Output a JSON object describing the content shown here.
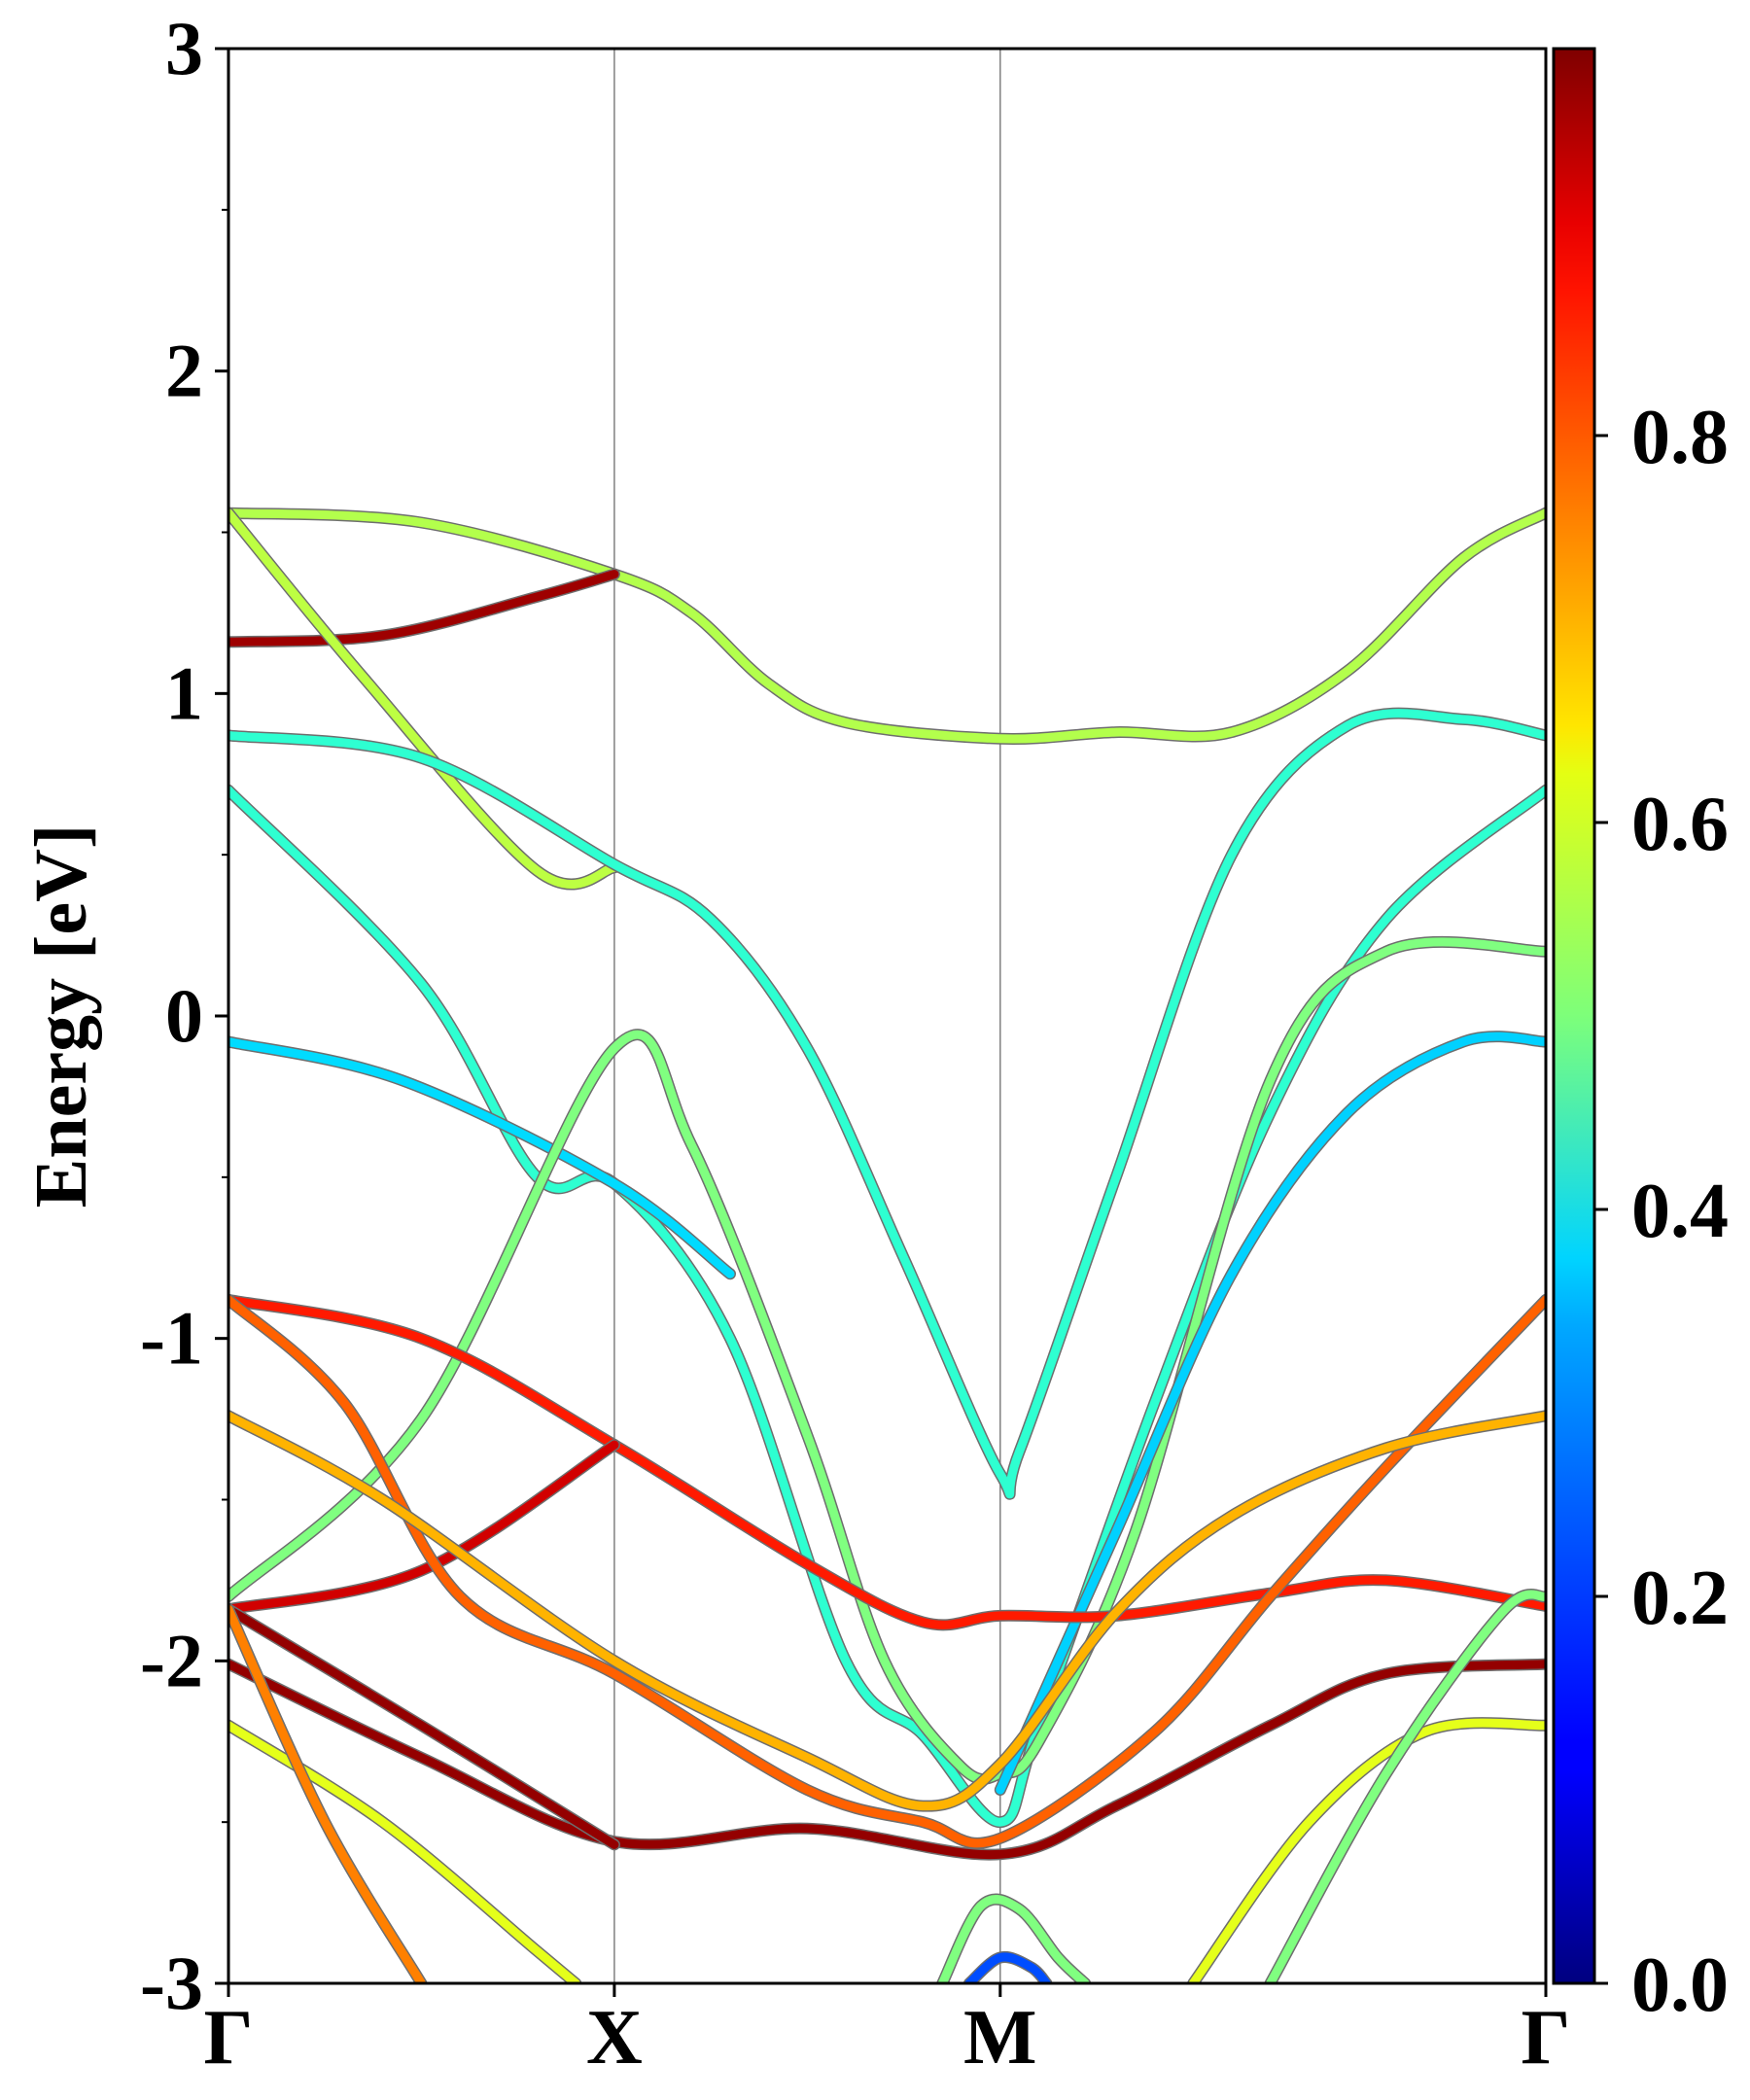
{
  "chart_data": {
    "type": "line",
    "xlabel": "",
    "ylabel": "Energy [eV]",
    "ylim": [
      -3,
      3
    ],
    "yticks": [
      -3,
      -2,
      -1,
      0,
      1,
      2,
      3
    ],
    "ytick_labels": [
      "-3",
      "-2",
      "-1",
      "0",
      "1",
      "2",
      "3"
    ],
    "xlim": [
      0,
      3.414
    ],
    "kpoints": [
      {
        "label": "Γ",
        "x": 0
      },
      {
        "label": "X",
        "x": 1
      },
      {
        "label": "M",
        "x": 2
      },
      {
        "label": "Γ",
        "x": 3.414
      }
    ],
    "colorbar": {
      "colormap": "jet",
      "range": [
        0.0,
        1.0
      ],
      "ticks": [
        0.0,
        0.2,
        0.4,
        0.6,
        0.8
      ],
      "tick_labels": [
        "0.0",
        "0.2",
        "0.4",
        "0.6",
        "0.8"
      ]
    },
    "series": [
      {
        "weight": 0.55,
        "points": [
          [
            0,
            1.56
          ],
          [
            0.5,
            1.53
          ],
          [
            1,
            1.37
          ],
          [
            1.2,
            1.25
          ],
          [
            1.4,
            1.03
          ],
          [
            1.6,
            0.91
          ],
          [
            2,
            0.86
          ],
          [
            2.3,
            0.88
          ],
          [
            2.6,
            0.88
          ],
          [
            2.9,
            1.07
          ],
          [
            3.2,
            1.42
          ],
          [
            3.414,
            1.56
          ]
        ]
      },
      {
        "weight": 0.97,
        "points": [
          [
            0,
            1.16
          ],
          [
            0.4,
            1.18
          ],
          [
            0.8,
            1.3
          ],
          [
            1,
            1.37
          ]
        ]
      },
      {
        "weight": 0.56,
        "points": [
          [
            0,
            1.56
          ],
          [
            0.35,
            1.05
          ],
          [
            0.8,
            0.45
          ],
          [
            1,
            0.46
          ]
        ]
      },
      {
        "weight": 0.42,
        "points": [
          [
            0,
            0.87
          ],
          [
            0.5,
            0.8
          ],
          [
            1,
            0.47
          ],
          [
            1.25,
            0.3
          ],
          [
            1.5,
            -0.1
          ],
          [
            1.75,
            -0.75
          ],
          [
            2,
            -1.42
          ],
          [
            2.05,
            -1.35
          ],
          [
            2.3,
            -0.5
          ],
          [
            2.6,
            0.5
          ],
          [
            2.9,
            0.9
          ],
          [
            3.2,
            0.92
          ],
          [
            3.414,
            0.87
          ]
        ]
      },
      {
        "weight": 0.42,
        "points": [
          [
            0,
            0.7
          ],
          [
            0.5,
            0.1
          ],
          [
            0.8,
            -0.5
          ],
          [
            1,
            -0.52
          ],
          [
            1.3,
            -1.0
          ],
          [
            1.6,
            -2.0
          ],
          [
            1.8,
            -2.23
          ],
          [
            2,
            -2.5
          ],
          [
            2.1,
            -2.2
          ],
          [
            2.4,
            -1.2
          ],
          [
            2.7,
            -0.3
          ],
          [
            3.0,
            0.3
          ],
          [
            3.414,
            0.7
          ]
        ]
      },
      {
        "weight": 0.34,
        "points": [
          [
            0,
            -0.08
          ],
          [
            0.45,
            -0.2
          ],
          [
            1,
            -0.52
          ],
          [
            1.3,
            -0.8
          ]
        ]
      },
      {
        "weight": 0.5,
        "points": [
          [
            0,
            -1.8
          ],
          [
            0.5,
            -1.25
          ],
          [
            1,
            -0.1
          ],
          [
            1.2,
            -0.4
          ],
          [
            1.5,
            -1.3
          ],
          [
            1.7,
            -2.0
          ],
          [
            1.9,
            -2.33
          ],
          [
            2,
            -2.35
          ],
          [
            2.1,
            -2.25
          ],
          [
            2.35,
            -1.6
          ],
          [
            2.7,
            -0.2
          ],
          [
            3.0,
            0.2
          ],
          [
            3.414,
            0.2
          ]
        ]
      },
      {
        "weight": 0.33,
        "points": [
          [
            2,
            -2.4
          ],
          [
            2.3,
            -1.6
          ],
          [
            2.6,
            -0.8
          ],
          [
            2.9,
            -0.3
          ],
          [
            3.2,
            -0.08
          ],
          [
            3.414,
            -0.08
          ]
        ]
      },
      {
        "weight": 0.85,
        "points": [
          [
            0,
            -0.88
          ],
          [
            0.5,
            -1.0
          ],
          [
            1,
            -1.33
          ],
          [
            1.5,
            -1.7
          ],
          [
            1.8,
            -1.88
          ],
          [
            2,
            -1.86
          ],
          [
            2.3,
            -1.86
          ],
          [
            2.7,
            -1.79
          ],
          [
            3.0,
            -1.75
          ],
          [
            3.414,
            -1.83
          ]
        ]
      },
      {
        "weight": 0.92,
        "points": [
          [
            0,
            -1.84
          ],
          [
            0.5,
            -1.72
          ],
          [
            1,
            -1.33
          ]
        ]
      },
      {
        "weight": 0.78,
        "points": [
          [
            0,
            -0.88
          ],
          [
            0.3,
            -1.2
          ],
          [
            0.6,
            -1.8
          ],
          [
            1,
            -2.04
          ],
          [
            1.5,
            -2.4
          ],
          [
            1.8,
            -2.5
          ],
          [
            2,
            -2.55
          ],
          [
            2.4,
            -2.22
          ],
          [
            2.7,
            -1.8
          ],
          [
            3.0,
            -1.4
          ],
          [
            3.414,
            -0.88
          ]
        ]
      },
      {
        "weight": 0.7,
        "points": [
          [
            0,
            -1.24
          ],
          [
            0.4,
            -1.5
          ],
          [
            1,
            -2.0
          ],
          [
            1.5,
            -2.3
          ],
          [
            1.8,
            -2.45
          ],
          [
            2,
            -2.32
          ],
          [
            2.3,
            -1.85
          ],
          [
            2.6,
            -1.55
          ],
          [
            3.0,
            -1.34
          ],
          [
            3.414,
            -1.24
          ]
        ]
      },
      {
        "weight": 0.98,
        "points": [
          [
            0,
            -2.01
          ],
          [
            0.5,
            -2.3
          ],
          [
            1,
            -2.56
          ],
          [
            1.5,
            -2.52
          ],
          [
            2,
            -2.6
          ],
          [
            2.3,
            -2.45
          ],
          [
            2.7,
            -2.2
          ],
          [
            3.0,
            -2.04
          ],
          [
            3.414,
            -2.01
          ]
        ]
      },
      {
        "weight": 0.98,
        "points": [
          [
            0,
            -1.84
          ],
          [
            0.5,
            -2.2
          ],
          [
            1,
            -2.57
          ]
        ]
      },
      {
        "weight": 0.6,
        "points": [
          [
            0,
            -2.2
          ],
          [
            0.4,
            -2.5
          ],
          [
            0.8,
            -2.9
          ],
          [
            0.9,
            -3.0
          ]
        ]
      },
      {
        "weight": 0.75,
        "points": [
          [
            0,
            -1.84
          ],
          [
            0.25,
            -2.5
          ],
          [
            0.5,
            -3.0
          ]
        ]
      },
      {
        "weight": 0.6,
        "points": [
          [
            2.5,
            -3.0
          ],
          [
            2.8,
            -2.5
          ],
          [
            3.1,
            -2.22
          ],
          [
            3.414,
            -2.2
          ]
        ]
      },
      {
        "weight": 0.5,
        "points": [
          [
            2.7,
            -3.0
          ],
          [
            3.0,
            -2.35
          ],
          [
            3.3,
            -1.85
          ],
          [
            3.414,
            -1.8
          ]
        ]
      },
      {
        "weight": 0.5,
        "points": [
          [
            1.85,
            -3.0
          ],
          [
            1.95,
            -2.76
          ],
          [
            2.05,
            -2.77
          ],
          [
            2.15,
            -2.92
          ],
          [
            2.22,
            -3.0
          ]
        ]
      },
      {
        "weight": 0.2,
        "points": [
          [
            1.92,
            -3.0
          ],
          [
            2,
            -2.92
          ],
          [
            2.08,
            -2.95
          ],
          [
            2.12,
            -3.0
          ]
        ]
      }
    ]
  }
}
